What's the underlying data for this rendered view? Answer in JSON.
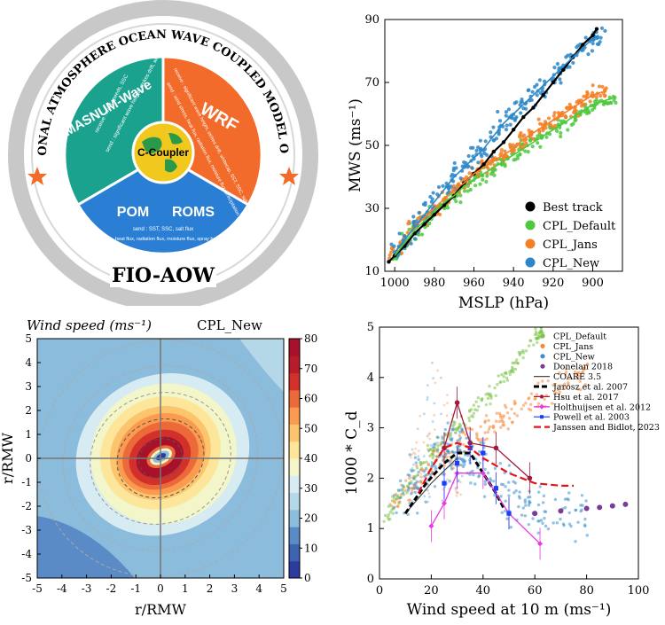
{
  "diagram": {
    "ring_text": "REGIONAL ATMOSPHERE OCEAN WAVE COUPLED MODEL OF FIO",
    "bottom_label": "FIO-AOW",
    "center": "C-Coupler",
    "wave": {
      "name": "MASNUM-Wave",
      "receive": "receive : wind speeds, SSC",
      "send": "send : significant wave height, stokes drift, whitecap"
    },
    "atm": {
      "name": "WRF",
      "receive": "receive : significant wave height, stokes drift, whitecap, SST, SSC, salt flux",
      "send": "send : wind stress, heat flux, radiation flux, moisture flux, precipitation"
    },
    "ocean": {
      "name1": "POM",
      "name2": "ROMS",
      "send": "send : SST, SSC, salt flux",
      "receive": "receive : wind stress, heat flux, radiation flux, moisture flux, spray heat flux, precipitation"
    },
    "colors": {
      "wave": "#1aa28f",
      "atm": "#f26b2a",
      "ocean": "#2a7fd4",
      "ring": "#c8c8c8"
    }
  },
  "chart_data": [
    {
      "type": "scatter",
      "xlabel": "MSLP (hPa)",
      "ylabel": "MWS (ms⁻¹)",
      "xlim": [
        1005,
        885
      ],
      "ylim": [
        10,
        90
      ],
      "xticks": [
        1000,
        980,
        960,
        940,
        920,
        900
      ],
      "yticks": [
        10,
        30,
        50,
        70,
        90
      ],
      "legend_position": "bottom-right",
      "series": [
        {
          "name": "Best track",
          "color": "#000000",
          "x": [
            1003,
            1000,
            995,
            990,
            985,
            980,
            975,
            970,
            965,
            960,
            955,
            950,
            945,
            940,
            935,
            930,
            925,
            920,
            915,
            910,
            905,
            900,
            898
          ],
          "y": [
            13,
            15,
            18,
            22,
            25,
            28,
            31,
            34,
            38,
            41,
            44,
            48,
            51,
            55,
            59,
            62,
            66,
            70,
            74,
            78,
            82,
            85,
            87
          ]
        },
        {
          "name": "CPL_Default",
          "color": "#4cc93e",
          "x": [
            1000,
            995,
            990,
            985,
            980,
            975,
            970,
            965,
            960,
            955,
            950,
            945,
            940,
            935,
            930,
            925,
            920,
            915,
            910,
            905,
            900,
            895,
            890
          ],
          "y": [
            15,
            19,
            23,
            26,
            29,
            32,
            34,
            37,
            39,
            41,
            43,
            45,
            47,
            49,
            51,
            53,
            55,
            57,
            59,
            61,
            63,
            64,
            65
          ]
        },
        {
          "name": "CPL_Jans",
          "color": "#f57f26",
          "x": [
            1000,
            995,
            990,
            985,
            980,
            975,
            970,
            965,
            960,
            955,
            950,
            945,
            940,
            935,
            930,
            925,
            920,
            915,
            910,
            905,
            900,
            895
          ],
          "y": [
            16,
            20,
            24,
            27,
            30,
            33,
            36,
            38,
            41,
            43,
            45,
            47,
            49,
            52,
            54,
            56,
            58,
            60,
            62,
            64,
            66,
            67
          ]
        },
        {
          "name": "CPL_New",
          "color": "#2b87c8",
          "x": [
            1000,
            995,
            990,
            985,
            980,
            975,
            970,
            965,
            960,
            955,
            950,
            945,
            940,
            935,
            930,
            925,
            920,
            915,
            910,
            905,
            900,
            897
          ],
          "y": [
            16,
            20,
            24,
            28,
            32,
            36,
            40,
            43,
            46,
            49,
            53,
            57,
            60,
            63,
            66,
            69,
            72,
            75,
            78,
            81,
            84,
            85
          ]
        }
      ]
    },
    {
      "type": "heatmap",
      "title": "Wind speed (ms⁻¹)",
      "subtitle": "CPL_New",
      "xlabel": "r/RMW",
      "ylabel": "r/RMW",
      "xlim": [
        -5,
        5
      ],
      "ylim": [
        -5,
        5
      ],
      "xticks": [
        -5,
        -4,
        -3,
        -2,
        -1,
        0,
        1,
        2,
        3,
        4,
        5
      ],
      "yticks": [
        -5,
        -4,
        -3,
        -2,
        -1,
        0,
        1,
        2,
        3,
        4,
        5
      ],
      "colorbar_ticks": [
        0,
        10,
        20,
        30,
        40,
        50,
        60,
        70,
        80
      ],
      "levels": [
        {
          "value": 5,
          "color": "#2b3c9e"
        },
        {
          "value": 15,
          "color": "#5a8bc6"
        },
        {
          "value": 25,
          "color": "#8cbcdc"
        },
        {
          "value": 30,
          "color": "#b4d8e8"
        },
        {
          "value": 35,
          "color": "#d6ecf2"
        },
        {
          "value": 40,
          "color": "#f2f6c8"
        },
        {
          "value": 45,
          "color": "#fde59a"
        },
        {
          "value": 50,
          "color": "#fdc46e"
        },
        {
          "value": 55,
          "color": "#fa9b4f"
        },
        {
          "value": 60,
          "color": "#ec6a3a"
        },
        {
          "value": 70,
          "color": "#d2302a"
        },
        {
          "value": 80,
          "color": "#a8112a"
        }
      ],
      "colorbar_colors": [
        "#2b3c9e",
        "#3d63b0",
        "#5a8bc6",
        "#8cbcdc",
        "#b4d8e8",
        "#d6ecf2",
        "#f2f6c8",
        "#fde59a",
        "#fdc46e",
        "#fa9b4f",
        "#ec6a3a",
        "#d2302a",
        "#b81b2a",
        "#a8112a"
      ]
    },
    {
      "type": "scatter",
      "xlabel": "Wind speed at 10 m (ms⁻¹)",
      "ylabel": "1000 * C_d",
      "xlim": [
        0,
        100
      ],
      "ylim": [
        0,
        5
      ],
      "xticks": [
        0,
        20,
        40,
        60,
        80,
        100
      ],
      "yticks": [
        0,
        1,
        2,
        3,
        4,
        5
      ],
      "legend_position": "top-right",
      "series": [
        {
          "name": "CPL_Default",
          "color": "#7ec34a",
          "x": [
            2,
            10,
            20,
            30,
            40,
            50,
            60,
            63
          ],
          "y": [
            1.2,
            1.8,
            2.5,
            3.0,
            3.5,
            4.1,
            4.8,
            5.0
          ]
        },
        {
          "name": "CPL_Jans",
          "color": "#f58a3c",
          "x": [
            5,
            15,
            25,
            35,
            45,
            55,
            70,
            80
          ],
          "y": [
            1.5,
            2.0,
            2.4,
            2.8,
            3.1,
            3.4,
            3.8,
            4.1
          ]
        },
        {
          "name": "CPL_New",
          "color": "#3b8fce",
          "x": [
            5,
            15,
            25,
            30,
            35,
            45,
            55,
            65,
            80
          ],
          "y": [
            1.5,
            2.0,
            2.5,
            2.6,
            2.4,
            1.8,
            1.4,
            1.3,
            1.35
          ]
        },
        {
          "name": "Donelan 2018",
          "color": "#7a3b9a",
          "x": [
            60,
            70,
            80,
            85,
            90,
            95
          ],
          "y": [
            1.3,
            1.35,
            1.4,
            1.42,
            1.45,
            1.48
          ]
        },
        {
          "name": "COARE 3.5",
          "color": "#4a4a4a",
          "x": [
            10,
            20,
            30
          ],
          "y": [
            1.3,
            1.9,
            2.4
          ]
        },
        {
          "name": "Jarosz et al. 2007",
          "color": "#000000",
          "x": [
            10,
            18,
            25,
            30,
            35,
            40,
            45,
            48
          ],
          "y": [
            1.3,
            1.9,
            2.3,
            2.5,
            2.5,
            2.1,
            1.7,
            1.4
          ]
        },
        {
          "name": "Hsu et al. 2017",
          "color": "#a11a3a",
          "x": [
            25,
            30,
            35,
            45,
            58
          ],
          "y": [
            2.6,
            3.5,
            2.7,
            2.6,
            2.0
          ]
        },
        {
          "name": "Holthuijsen et al. 2012",
          "color": "#e83ae0",
          "x": [
            20,
            25,
            30,
            40,
            50,
            62
          ],
          "y": [
            1.05,
            1.5,
            2.1,
            2.1,
            1.3,
            0.7
          ]
        },
        {
          "name": "Powell et al. 2003",
          "color": "#1a3cff",
          "x": [
            25,
            30,
            35,
            40,
            45,
            50
          ],
          "y": [
            1.9,
            2.3,
            2.6,
            2.5,
            1.8,
            1.3
          ]
        },
        {
          "name": "Janssen and Bidlot, 2023",
          "color": "#e4141e",
          "x": [
            15,
            20,
            25,
            30,
            35,
            40,
            50,
            60,
            70,
            75
          ],
          "y": [
            1.7,
            2.2,
            2.6,
            2.7,
            2.6,
            2.4,
            2.1,
            1.9,
            1.85,
            1.85
          ]
        }
      ]
    }
  ]
}
